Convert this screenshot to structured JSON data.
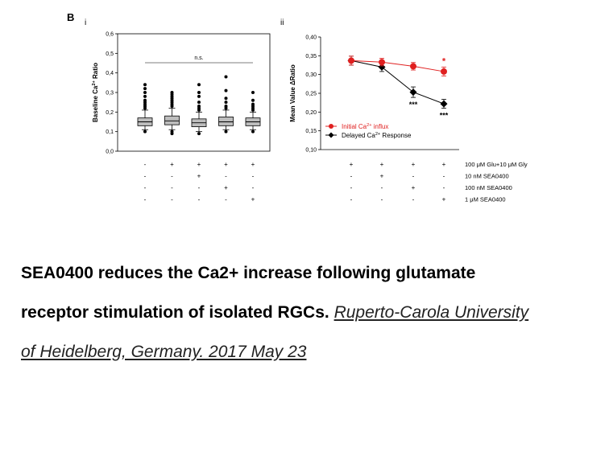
{
  "figure": {
    "panel_letter": "B",
    "panel_i_label": "i",
    "panel_ii_label": "ii"
  },
  "chart_data": [
    {
      "type": "box",
      "panel": "i",
      "ylabel": "Baseline Ca2+ Ratio",
      "ylim": [
        0.0,
        0.6
      ],
      "yticks": [
        "0,0",
        "0,1",
        "0,2",
        "0,3",
        "0,4",
        "0,5",
        "0,6"
      ],
      "significance": "n.s.",
      "groups": [
        {
          "median": 0.15,
          "q1": 0.13,
          "q3": 0.17,
          "wlo": 0.11,
          "whi": 0.21,
          "outliers_high": [
            0.22,
            0.23,
            0.24,
            0.25,
            0.26,
            0.28,
            0.3,
            0.32,
            0.34
          ],
          "outliers_low": [
            0.1
          ]
        },
        {
          "median": 0.155,
          "q1": 0.135,
          "q3": 0.18,
          "wlo": 0.11,
          "whi": 0.22,
          "outliers_high": [
            0.23,
            0.24,
            0.25,
            0.26,
            0.27,
            0.28,
            0.29,
            0.3
          ],
          "outliers_low": [
            0.09,
            0.1
          ]
        },
        {
          "median": 0.145,
          "q1": 0.125,
          "q3": 0.165,
          "wlo": 0.1,
          "whi": 0.2,
          "outliers_high": [
            0.21,
            0.22,
            0.23,
            0.25,
            0.28,
            0.3,
            0.34
          ],
          "outliers_low": [
            0.09
          ]
        },
        {
          "median": 0.15,
          "q1": 0.13,
          "q3": 0.175,
          "wlo": 0.11,
          "whi": 0.21,
          "outliers_high": [
            0.22,
            0.23,
            0.25,
            0.27,
            0.31,
            0.38
          ],
          "outliers_low": [
            0.1
          ]
        },
        {
          "median": 0.15,
          "q1": 0.13,
          "q3": 0.17,
          "wlo": 0.11,
          "whi": 0.2,
          "outliers_high": [
            0.21,
            0.22,
            0.23,
            0.24,
            0.26,
            0.3
          ],
          "outliers_low": [
            0.1
          ]
        }
      ],
      "condition_table": [
        [
          "-",
          "+",
          "+",
          "+",
          "+"
        ],
        [
          "-",
          "-",
          "+",
          "-",
          "-"
        ],
        [
          "-",
          "-",
          "-",
          "+",
          "-"
        ],
        [
          "-",
          "-",
          "-",
          "-",
          "+"
        ]
      ]
    },
    {
      "type": "line",
      "panel": "ii",
      "ylabel": "Mean Value ΔRatio",
      "ylim": [
        0.1,
        0.4
      ],
      "yticks": [
        "0,10",
        "0,15",
        "0,20",
        "0,25",
        "0,30",
        "0,35",
        "0,40"
      ],
      "series": [
        {
          "name": "Initial Ca2+ influx",
          "color": "#e02020",
          "values": [
            0.337,
            0.333,
            0.322,
            0.308
          ],
          "errors": [
            0.012,
            0.01,
            0.01,
            0.012
          ]
        },
        {
          "name": "Delayed Ca2+ Response",
          "color": "#000000",
          "values": [
            0.337,
            0.32,
            0.253,
            0.222
          ],
          "errors": [
            0.012,
            0.012,
            0.014,
            0.012
          ]
        }
      ],
      "annotations": [
        {
          "point": 2,
          "series": 1,
          "text": "***"
        },
        {
          "point": 3,
          "series": 1,
          "text": "***"
        },
        {
          "point": 3,
          "series": 0,
          "text": "*"
        }
      ],
      "condition_rows": [
        {
          "label": "100 μM Glu+10 μM Gly",
          "values": [
            "+",
            "+",
            "+",
            "+"
          ]
        },
        {
          "label": "10 nM SEA0400",
          "values": [
            "-",
            "+",
            "-",
            "-"
          ]
        },
        {
          "label": "100 nM SEA0400",
          "values": [
            "-",
            "-",
            "+",
            "-"
          ]
        },
        {
          "label": "1 μM SEA0400",
          "values": [
            "-",
            "-",
            "-",
            "+"
          ]
        }
      ]
    }
  ],
  "caption": {
    "bold_line1": "SEA0400 reduces the Ca2+ increase following glutamate",
    "bold_line2": "receptor stimulation of isolated RGCs.",
    "link_line2": "Ruperto-Carola University",
    "link_line3": "of Heidelberg, Germany. 2017 May 23"
  }
}
